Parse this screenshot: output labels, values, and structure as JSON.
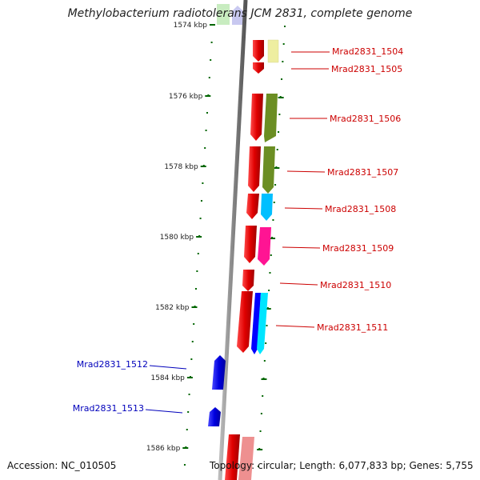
{
  "title": "Methylobacterium radiotolerans JCM 2831, complete genome",
  "footer": {
    "accession": "Accession: NC_010505",
    "topology": "Topology: circular; Length: 6,077,833 bp; Genes: 5,755"
  },
  "scale": {
    "partial_label": "1574 kbp",
    "ticks": [
      {
        "label": "1576 kbp"
      },
      {
        "label": "1578 kbp"
      },
      {
        "label": "1580 kbp"
      },
      {
        "label": "1582 kbp"
      },
      {
        "label": "1584 kbp"
      },
      {
        "label": "1586 kbp"
      }
    ]
  },
  "colors": {
    "forward_gene": "#e00000",
    "reverse_gene": "#0000e0",
    "forward_label": "#cc0000",
    "reverse_label": "#0000bb",
    "backbone": "#888888",
    "tick": "#006600"
  },
  "genes_forward": [
    {
      "name": "Mrad2831_1504",
      "category_color": "#eeeea0"
    },
    {
      "name": "Mrad2831_1505",
      "category_color": ""
    },
    {
      "name": "Mrad2831_1506",
      "category_color": "#6b8e23"
    },
    {
      "name": "Mrad2831_1507",
      "category_color": "#6b8e23"
    },
    {
      "name": "Mrad2831_1508",
      "category_color": "#00bfff"
    },
    {
      "name": "Mrad2831_1509",
      "category_color": "#ff1493"
    },
    {
      "name": "Mrad2831_1510",
      "category_color": ""
    },
    {
      "name": "Mrad2831_1511",
      "category_color": "#0000ff"
    }
  ],
  "genes_reverse": [
    {
      "name": "Mrad2831_1512"
    },
    {
      "name": "Mrad2831_1513"
    }
  ]
}
